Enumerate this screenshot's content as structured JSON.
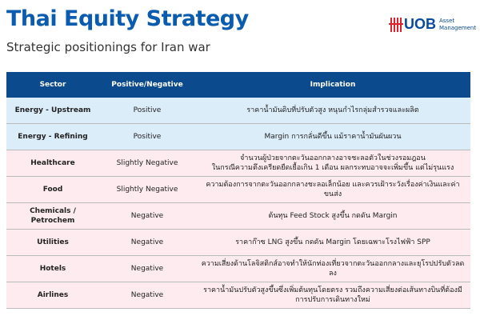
{
  "header": {
    "title": "Thai Equity Strategy",
    "subtitle": "Strategic positionings for Iran war"
  },
  "logo": {
    "brand": "UOB",
    "line1": "Asset",
    "line2": "Management",
    "color": "#e0202a"
  },
  "colors": {
    "header_bg": "#0b4a8c",
    "positive_row": "#dcedfa",
    "negative_row": "#fdebef",
    "title": "#0a5cb0"
  },
  "table": {
    "columns": [
      "Sector",
      "Positive/Negative",
      "Implication"
    ],
    "rows": [
      {
        "sector": "Energy - Upstream",
        "stance": "Positive",
        "implication": "ราคาน้ำมันดิบที่ปรับตัวสูง หนุนกำไรกลุ่มสำรวจและผลิต"
      },
      {
        "sector": "Energy - Refining",
        "stance": "Positive",
        "implication": "Margin การกลั่นดีขึ้น แม้ราคาน้ำมันผันผวน"
      },
      {
        "sector": "Healthcare",
        "stance": "Slightly Negative",
        "implication": "จำนวนผู้ป่วยจากตะวันออกกลางอาจชะลอตัวในช่วงรอมฎอน",
        "implication2": "ในกรณีความตึงเครียดยืดเยื้อเกิน 1 เดือน ผลกระทบอาจจะเพิ่มขึ้น แต่ไม่รุนแรง"
      },
      {
        "sector": "Food",
        "stance": "Slightly Negative",
        "implication": "ความต้องการจากตะวันออกกลางชะลอเล็กน้อย และควรเฝ้าระวังเรื่องค่าเงินและค่าขนส่ง"
      },
      {
        "sector": "Chemicals / Petrochem",
        "stance": "Negative",
        "implication": "ต้นทุน Feed Stock สูงขึ้น กดดัน Margin"
      },
      {
        "sector": "Utilities",
        "stance": "Negative",
        "implication": "ราคาก๊าซ LNG สูงขึ้น กดดัน Margin โดยเฉพาะโรงไฟฟ้า SPP"
      },
      {
        "sector": "Hotels",
        "stance": "Negative",
        "implication": "ความเสี่ยงด้านโลจิสติกส์อาจทำให้นักท่องเที่ยวจากตะวันออกกลางและยุโรปปรับตัวลดลง"
      },
      {
        "sector": "Airlines",
        "stance": "Negative",
        "implication": "ราคาน้ำมันปรับตัวสูงขึ้นซึ่งเพิ่มต้นทุนโดยตรง รวมถึงความเสี่ยงต่อเส้นทางบินที่ต้องมีการปรับการเดินทางใหม่"
      }
    ]
  }
}
